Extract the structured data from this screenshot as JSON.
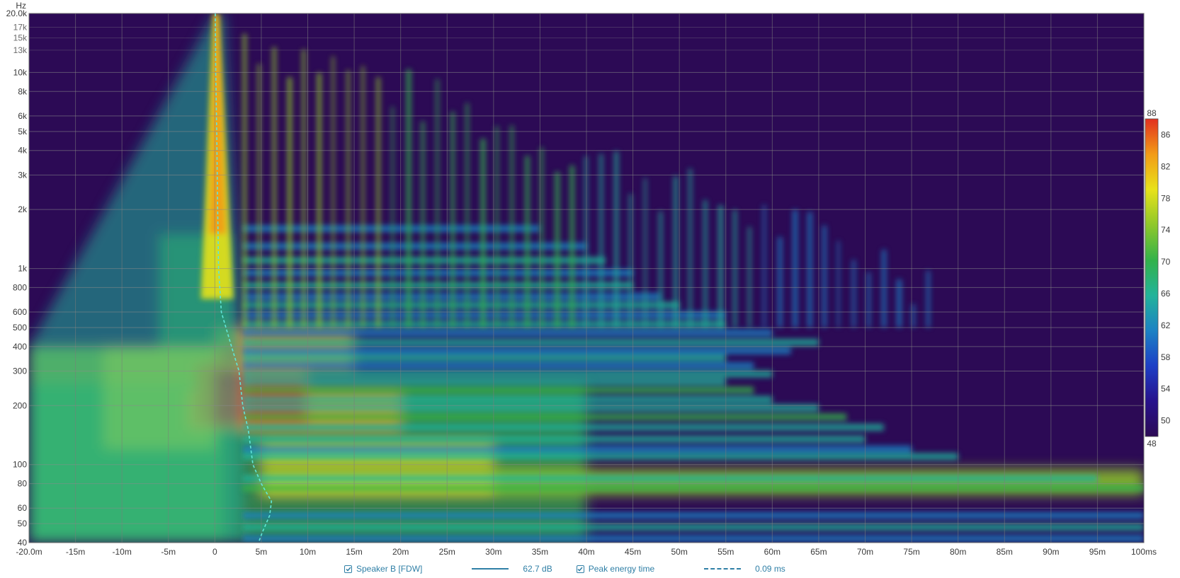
{
  "chart_data": {
    "type": "heatmap",
    "title": "",
    "xlabel": "",
    "ylabel": "Hz",
    "x_ticks": [
      "-20.0m",
      "-15m",
      "-10m",
      "-5m",
      "0",
      "5m",
      "10m",
      "15m",
      "20m",
      "25m",
      "30m",
      "35m",
      "40m",
      "45m",
      "50m",
      "55m",
      "60m",
      "65m",
      "70m",
      "75m",
      "80m",
      "85m",
      "90m",
      "95m",
      "100ms"
    ],
    "x_tick_values_ms": [
      -20,
      -15,
      -10,
      -5,
      0,
      5,
      10,
      15,
      20,
      25,
      30,
      35,
      40,
      45,
      50,
      55,
      60,
      65,
      70,
      75,
      80,
      85,
      90,
      95,
      100
    ],
    "xlim_ms": [
      -20,
      100
    ],
    "y_scale": "log",
    "ylim_hz": [
      40,
      20000
    ],
    "y_ticks": [
      {
        "label": "20.0k",
        "hz": 20000,
        "major": true
      },
      {
        "label": "17k",
        "hz": 17000,
        "major": false
      },
      {
        "label": "15k",
        "hz": 15000,
        "major": false
      },
      {
        "label": "13k",
        "hz": 13000,
        "major": false
      },
      {
        "label": "10k",
        "hz": 10000,
        "major": true
      },
      {
        "label": "8k",
        "hz": 8000,
        "major": true
      },
      {
        "label": "6k",
        "hz": 6000,
        "major": true
      },
      {
        "label": "5k",
        "hz": 5000,
        "major": true
      },
      {
        "label": "4k",
        "hz": 4000,
        "major": true
      },
      {
        "label": "3k",
        "hz": 3000,
        "major": true
      },
      {
        "label": "2k",
        "hz": 2000,
        "major": true
      },
      {
        "label": "1k",
        "hz": 1000,
        "major": true
      },
      {
        "label": "800",
        "hz": 800,
        "major": true
      },
      {
        "label": "600",
        "hz": 600,
        "major": true
      },
      {
        "label": "500",
        "hz": 500,
        "major": true
      },
      {
        "label": "400",
        "hz": 400,
        "major": true
      },
      {
        "label": "300",
        "hz": 300,
        "major": true
      },
      {
        "label": "200",
        "hz": 200,
        "major": true
      },
      {
        "label": "100",
        "hz": 100,
        "major": true
      },
      {
        "label": "80",
        "hz": 80,
        "major": true
      },
      {
        "label": "60",
        "hz": 60,
        "major": true
      },
      {
        "label": "50",
        "hz": 50,
        "major": true
      },
      {
        "label": "40",
        "hz": 40,
        "major": true
      }
    ],
    "color_scale": {
      "min_db": 48,
      "max_db": 88,
      "tick_labels": [
        "88",
        "86",
        "82",
        "78",
        "74",
        "70",
        "66",
        "62",
        "58",
        "54",
        "50",
        "48"
      ],
      "tick_values": [
        88,
        86,
        82,
        78,
        74,
        70,
        66,
        62,
        58,
        54,
        50,
        48
      ],
      "colors": [
        "#2c0a55",
        "#27128c",
        "#1d3fc6",
        "#1c82c4",
        "#22b39a",
        "#33b24a",
        "#8fc82a",
        "#e8e21a",
        "#f29b17",
        "#e2301f"
      ]
    },
    "series": [
      {
        "name": "Peak energy time",
        "style": "dashed",
        "color": "#5fe6d8",
        "points": [
          {
            "hz": 20000,
            "ms": 0.05
          },
          {
            "hz": 10000,
            "ms": 0.1
          },
          {
            "hz": 5000,
            "ms": 0.2
          },
          {
            "hz": 2000,
            "ms": 0.3
          },
          {
            "hz": 1000,
            "ms": 0.4
          },
          {
            "hz": 600,
            "ms": 0.7
          },
          {
            "hz": 400,
            "ms": 1.8
          },
          {
            "hz": 300,
            "ms": 2.6
          },
          {
            "hz": 200,
            "ms": 3.0
          },
          {
            "hz": 150,
            "ms": 3.6
          },
          {
            "hz": 100,
            "ms": 4.1
          },
          {
            "hz": 80,
            "ms": 5.0
          },
          {
            "hz": 65,
            "ms": 6.1
          },
          {
            "hz": 55,
            "ms": 5.9
          },
          {
            "hz": 45,
            "ms": 5.1
          },
          {
            "hz": 40,
            "ms": 4.7
          }
        ]
      }
    ]
  },
  "legend": {
    "items": [
      {
        "label": "Speaker B [FDW]",
        "value": "62.7 dB",
        "line": "solid",
        "checked": true
      },
      {
        "label": "Peak energy time",
        "value": "0.09 ms",
        "line": "dashed",
        "checked": true
      }
    ]
  }
}
